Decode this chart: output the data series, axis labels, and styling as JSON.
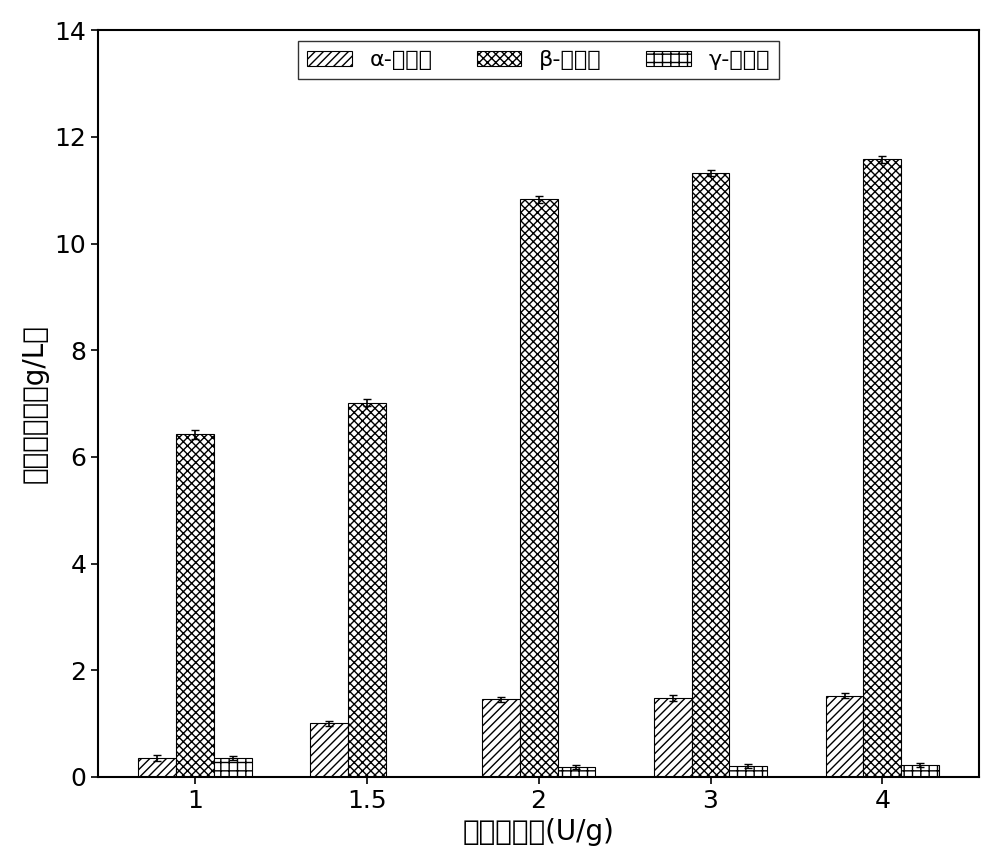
{
  "categories": [
    "1",
    "1.5",
    "2",
    "3",
    "4"
  ],
  "alpha_values": [
    0.35,
    1.0,
    1.45,
    1.48,
    1.52
  ],
  "beta_values": [
    6.42,
    7.02,
    10.83,
    11.32,
    11.58
  ],
  "gamma_values": [
    0.35,
    0.0,
    0.18,
    0.2,
    0.22
  ],
  "alpha_errors": [
    0.05,
    0.05,
    0.05,
    0.05,
    0.05
  ],
  "beta_errors": [
    0.08,
    0.06,
    0.07,
    0.06,
    0.06
  ],
  "gamma_errors": [
    0.04,
    0.0,
    0.04,
    0.04,
    0.04
  ],
  "xlabel": "液化加酶量(U/g)",
  "ylabel": "环糖精产量（g/L）",
  "ylim": [
    0,
    14
  ],
  "yticks": [
    0,
    2,
    4,
    6,
    8,
    10,
    12,
    14
  ],
  "legend_labels": [
    "α-环糖精",
    "β-环糖精",
    "γ-环糖精"
  ],
  "bar_width": 0.22,
  "figsize": [
    10.0,
    8.67
  ],
  "dpi": 100,
  "alpha_hatch": "////",
  "beta_hatch": "xxxx",
  "gamma_hatch": "++",
  "bar_edgecolor": "#000000",
  "bar_facecolor": "#ffffff",
  "xlabel_fontsize": 20,
  "ylabel_fontsize": 20,
  "tick_fontsize": 18,
  "legend_fontsize": 16
}
